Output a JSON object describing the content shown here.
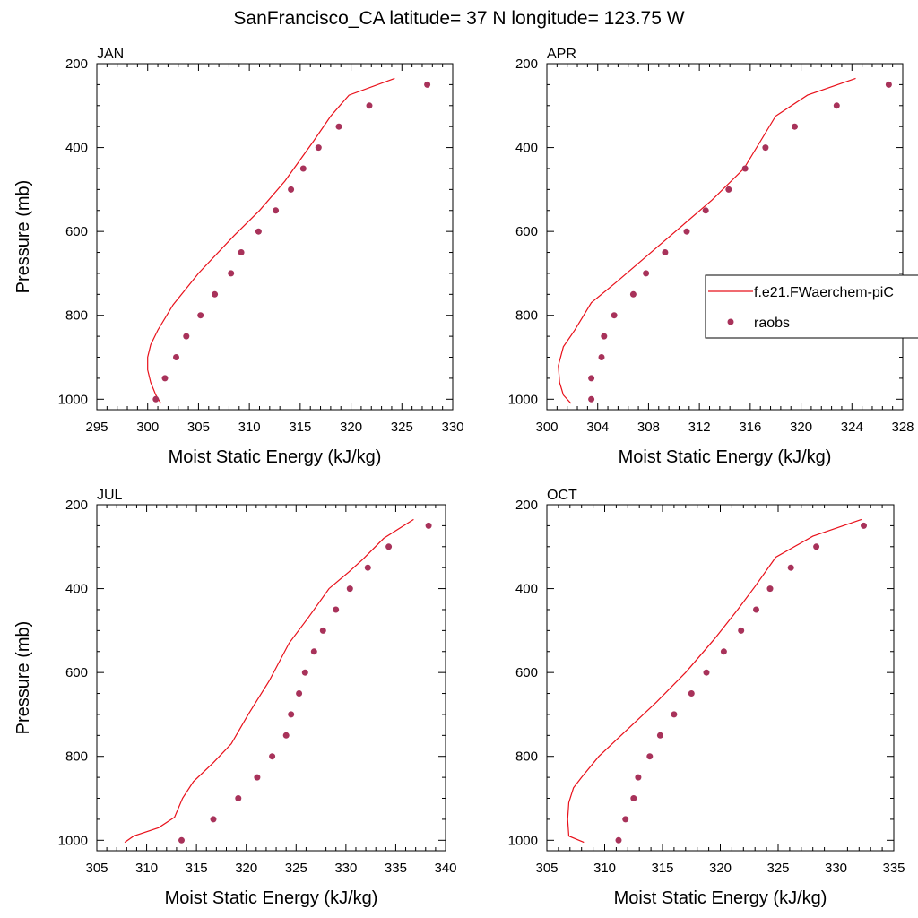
{
  "title": "SanFrancisco_CA  latitude= 37 N longitude= 123.75 W",
  "colors": {
    "model_line": "#e8101a",
    "raobs_marker": "#a8325a",
    "axis": "#000000"
  },
  "legend": {
    "placement": "right-middle",
    "model_label": "f.e21.FWaerchem-piC",
    "obs_label": "raobs"
  },
  "chart_data": [
    {
      "type": "line",
      "panel": "JAN",
      "xlabel": "Moist Static Energy (kJ/kg)",
      "ylabel": "Pressure (mb)",
      "xlim": [
        295,
        330
      ],
      "ylim": [
        1025,
        200
      ],
      "xticks": [
        295,
        300,
        305,
        310,
        315,
        320,
        325,
        330
      ],
      "yticks": [
        200,
        400,
        600,
        800,
        1000
      ],
      "series": [
        {
          "name": "f.e21.FWaerchem-piC",
          "style": "line",
          "x": [
            301.3,
            300.8,
            300.3,
            300.0,
            300.0,
            300.3,
            301.0,
            302.5,
            305.0,
            308.5,
            311.0,
            313.5,
            316.3,
            318.0,
            319.8,
            324.3
          ],
          "y": [
            1010,
            990,
            960,
            930,
            900,
            870,
            835,
            775,
            700,
            610,
            550,
            480,
            385,
            325,
            275,
            235
          ]
        },
        {
          "name": "raobs",
          "style": "markers",
          "x": [
            300.8,
            301.7,
            302.8,
            303.8,
            305.2,
            306.6,
            308.2,
            309.2,
            310.9,
            312.6,
            314.1,
            315.3,
            316.8,
            318.8,
            321.8,
            327.5
          ],
          "y": [
            1000,
            950,
            900,
            850,
            800,
            750,
            700,
            650,
            600,
            550,
            500,
            450,
            400,
            350,
            300,
            250
          ]
        }
      ]
    },
    {
      "type": "line",
      "panel": "APR",
      "xlabel": "Moist Static Energy (kJ/kg)",
      "ylabel": "",
      "xlim": [
        300,
        328
      ],
      "ylim": [
        1025,
        200
      ],
      "xticks": [
        300,
        304,
        308,
        312,
        316,
        320,
        324,
        328
      ],
      "yticks": [
        200,
        400,
        600,
        800,
        1000
      ],
      "series": [
        {
          "name": "f.e21.FWaerchem-piC",
          "style": "line",
          "x": [
            301.9,
            301.3,
            301.0,
            300.9,
            301.3,
            302.2,
            303.5,
            305.5,
            308.0,
            310.5,
            313.0,
            315.5,
            318.0,
            320.5,
            324.3
          ],
          "y": [
            1010,
            990,
            960,
            920,
            875,
            835,
            770,
            720,
            655,
            590,
            525,
            450,
            325,
            275,
            235
          ]
        },
        {
          "name": "raobs",
          "style": "markers",
          "x": [
            303.5,
            303.5,
            304.3,
            304.5,
            305.3,
            306.8,
            307.8,
            309.3,
            311.0,
            312.5,
            314.3,
            315.6,
            317.2,
            319.5,
            322.8,
            326.9
          ],
          "y": [
            1000,
            950,
            900,
            850,
            800,
            750,
            700,
            650,
            600,
            550,
            500,
            450,
            400,
            350,
            300,
            250
          ]
        }
      ]
    },
    {
      "type": "line",
      "panel": "JUL",
      "xlabel": "Moist Static Energy (kJ/kg)",
      "ylabel": "Pressure (mb)",
      "xlim": [
        305,
        340
      ],
      "ylim": [
        1025,
        200
      ],
      "xticks": [
        305,
        310,
        315,
        320,
        325,
        330,
        335,
        340
      ],
      "yticks": [
        200,
        400,
        600,
        800,
        1000
      ],
      "series": [
        {
          "name": "f.e21.FWaerchem-piC",
          "style": "line",
          "x": [
            307.8,
            308.7,
            311.2,
            312.8,
            313.6,
            314.7,
            316.7,
            318.5,
            320.2,
            322.3,
            324.3,
            326.2,
            328.3,
            330.3,
            331.7,
            333.8,
            336.8
          ],
          "y": [
            1005,
            990,
            970,
            945,
            900,
            860,
            815,
            770,
            700,
            620,
            530,
            470,
            400,
            360,
            330,
            280,
            235
          ]
        },
        {
          "name": "raobs",
          "style": "markers",
          "x": [
            313.5,
            316.7,
            319.2,
            321.1,
            322.6,
            324.0,
            324.5,
            325.3,
            325.9,
            326.8,
            327.7,
            329.0,
            330.4,
            332.2,
            334.3,
            338.3
          ],
          "y": [
            1000,
            950,
            900,
            850,
            800,
            750,
            700,
            650,
            600,
            550,
            500,
            450,
            400,
            350,
            300,
            250
          ]
        }
      ]
    },
    {
      "type": "line",
      "panel": "OCT",
      "xlabel": "Moist Static Energy (kJ/kg)",
      "ylabel": "",
      "xlim": [
        305,
        335
      ],
      "ylim": [
        1025,
        200
      ],
      "xticks": [
        305,
        310,
        315,
        320,
        325,
        330,
        335
      ],
      "yticks": [
        200,
        400,
        600,
        800,
        1000
      ],
      "series": [
        {
          "name": "f.e21.FWaerchem-piC",
          "style": "line",
          "x": [
            308.2,
            306.9,
            306.8,
            306.9,
            307.3,
            308.0,
            309.5,
            311.8,
            314.5,
            317.0,
            319.5,
            321.5,
            323.0,
            324.8,
            328.0,
            332.2
          ],
          "y": [
            1005,
            990,
            950,
            910,
            875,
            850,
            800,
            740,
            670,
            600,
            520,
            450,
            395,
            325,
            275,
            235
          ]
        },
        {
          "name": "raobs",
          "style": "markers",
          "x": [
            311.2,
            311.8,
            312.5,
            312.9,
            313.9,
            314.8,
            316.0,
            317.5,
            318.8,
            320.3,
            321.8,
            323.1,
            324.3,
            326.1,
            328.3,
            332.4
          ],
          "y": [
            1000,
            950,
            900,
            850,
            800,
            750,
            700,
            650,
            600,
            550,
            500,
            450,
            400,
            350,
            300,
            250
          ]
        }
      ]
    }
  ]
}
